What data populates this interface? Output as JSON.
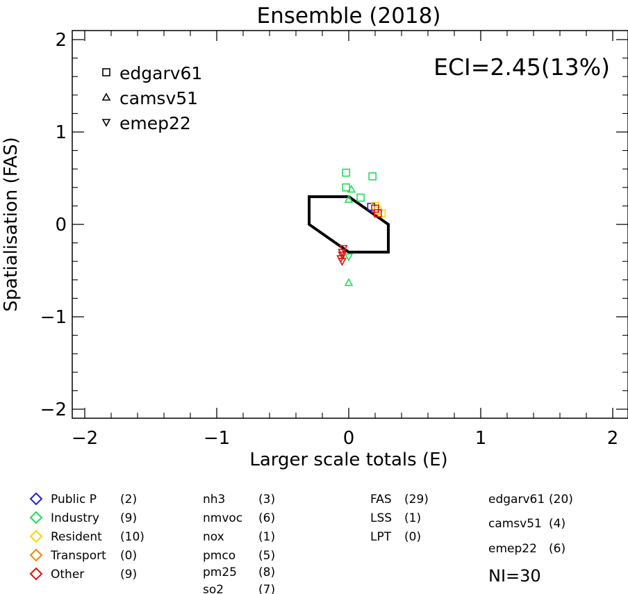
{
  "chart_data": {
    "type": "scatter",
    "title": "Ensemble (2018)",
    "xlabel": "Larger scale totals (E)",
    "ylabel": "Spatialisation (FAS)",
    "xlim": [
      -2.1,
      2.1
    ],
    "ylim": [
      -2.1,
      2.1
    ],
    "xticks": [
      -2,
      -1,
      0,
      1,
      2
    ],
    "yticks": [
      -2,
      -1,
      0,
      1,
      2
    ],
    "xtick_labels": [
      "−2",
      "−1",
      "0",
      "1",
      "2"
    ],
    "ytick_labels": [
      "−2",
      "−1",
      "0",
      "1",
      "2"
    ],
    "annotation": "ECI=2.45(13%)",
    "legend_markers": [
      {
        "marker": "square",
        "label": "edgarv61"
      },
      {
        "marker": "triangle-up",
        "label": "camsv51"
      },
      {
        "marker": "triangle-down",
        "label": "emep22"
      }
    ],
    "target_polygon": [
      [
        -0.3,
        0.3
      ],
      [
        0.0,
        0.3
      ],
      [
        0.3,
        0.0
      ],
      [
        0.3,
        -0.3
      ],
      [
        0.0,
        -0.3
      ],
      [
        -0.3,
        0.0
      ]
    ],
    "points": [
      {
        "x": -0.02,
        "y": 0.56,
        "marker": "square",
        "color": "#22dd55"
      },
      {
        "x": 0.18,
        "y": 0.52,
        "marker": "square",
        "color": "#22dd55"
      },
      {
        "x": -0.02,
        "y": 0.4,
        "marker": "square",
        "color": "#22dd55"
      },
      {
        "x": 0.09,
        "y": 0.29,
        "marker": "square",
        "color": "#22dd55"
      },
      {
        "x": 0.17,
        "y": 0.19,
        "marker": "square",
        "color": "#2222cc"
      },
      {
        "x": 0.2,
        "y": 0.2,
        "marker": "square",
        "color": "#ffd400"
      },
      {
        "x": 0.22,
        "y": 0.15,
        "marker": "square",
        "color": "#ffd400"
      },
      {
        "x": 0.25,
        "y": 0.12,
        "marker": "square",
        "color": "#ffd400"
      },
      {
        "x": 0.2,
        "y": 0.17,
        "marker": "square",
        "color": "#dd1111"
      },
      {
        "x": 0.22,
        "y": 0.12,
        "marker": "square",
        "color": "#dd1111"
      },
      {
        "x": 0.02,
        "y": 0.38,
        "marker": "triangle-up",
        "color": "#22dd55"
      },
      {
        "x": 0.0,
        "y": 0.27,
        "marker": "triangle-up",
        "color": "#22dd55"
      },
      {
        "x": 0.0,
        "y": -0.63,
        "marker": "triangle-up",
        "color": "#22dd55"
      },
      {
        "x": 0.0,
        "y": -0.35,
        "marker": "triangle-down",
        "color": "#22dd55"
      },
      {
        "x": -0.04,
        "y": -0.26,
        "marker": "triangle-down",
        "color": "#dd1111"
      },
      {
        "x": -0.05,
        "y": -0.3,
        "marker": "triangle-down",
        "color": "#dd1111"
      },
      {
        "x": -0.05,
        "y": -0.33,
        "marker": "triangle-down",
        "color": "#dd1111"
      },
      {
        "x": -0.06,
        "y": -0.37,
        "marker": "triangle-down",
        "color": "#dd1111"
      },
      {
        "x": -0.05,
        "y": -0.4,
        "marker": "triangle-down",
        "color": "#dd1111"
      }
    ]
  },
  "legend": {
    "sectors": [
      {
        "label": "Public P",
        "count": "(2)",
        "color": "#2222cc"
      },
      {
        "label": "Industry",
        "count": "(9)",
        "color": "#22dd55"
      },
      {
        "label": "Resident",
        "count": "(10)",
        "color": "#ffd400"
      },
      {
        "label": "Transport",
        "count": "(0)",
        "color": "#ee8800"
      },
      {
        "label": "Other",
        "count": "(9)",
        "color": "#dd1111"
      }
    ],
    "pollutants": [
      {
        "label": "nh3",
        "count": "(3)"
      },
      {
        "label": "nmvoc",
        "count": "(6)"
      },
      {
        "label": "nox",
        "count": "(1)"
      },
      {
        "label": "pmco",
        "count": "(5)"
      },
      {
        "label": "pm25",
        "count": "(8)"
      },
      {
        "label": "so2",
        "count": "(7)"
      }
    ],
    "indicators": [
      {
        "label": "FAS",
        "count": "(29)"
      },
      {
        "label": "LSS",
        "count": "(1)"
      },
      {
        "label": "LPT",
        "count": "(0)"
      }
    ],
    "inventories": [
      {
        "label": "edgarv61",
        "count": "(20)"
      },
      {
        "label": "camsv51",
        "count": "(4)"
      },
      {
        "label": "emep22",
        "count": "(6)"
      }
    ],
    "total": "NI=30"
  }
}
